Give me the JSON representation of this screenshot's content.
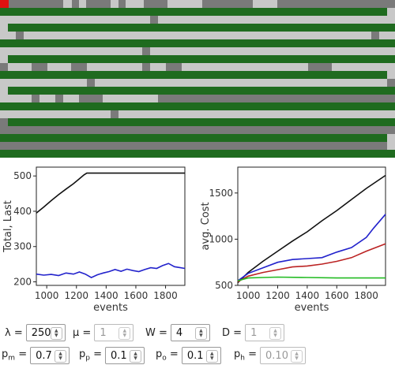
{
  "colors": {
    "empty": "#c8c8c8",
    "busy": "#7a7a7a",
    "filled": "#1f6b1f",
    "alert": "#e01010",
    "black_series": "#111111",
    "blue_series": "#2222cc",
    "red_series": "#bb2222",
    "green_series": "#22bb22"
  },
  "grid": {
    "rows": [
      [
        [
          0,
          11,
          "alert"
        ],
        [
          11,
          80,
          "busy"
        ],
        [
          80,
          91,
          "empty"
        ],
        [
          91,
          100,
          "busy"
        ],
        [
          100,
          109,
          "empty"
        ],
        [
          109,
          140,
          "busy"
        ],
        [
          140,
          150,
          "empty"
        ],
        [
          150,
          159,
          "busy"
        ],
        [
          159,
          182,
          "empty"
        ],
        [
          182,
          212,
          "busy"
        ],
        [
          212,
          256,
          "empty"
        ],
        [
          256,
          320,
          "busy"
        ],
        [
          320,
          351,
          "empty"
        ],
        [
          351,
          500,
          "busy"
        ]
      ],
      [
        [
          0,
          490,
          "filled"
        ],
        [
          490,
          500,
          "empty"
        ]
      ],
      [
        [
          0,
          190,
          "empty"
        ],
        [
          190,
          200,
          "busy"
        ],
        [
          200,
          500,
          "empty"
        ]
      ],
      [
        [
          0,
          10,
          "empty"
        ],
        [
          10,
          500,
          "filled"
        ]
      ],
      [
        [
          0,
          20,
          "empty"
        ],
        [
          20,
          30,
          "busy"
        ],
        [
          30,
          470,
          "empty"
        ],
        [
          470,
          480,
          "busy"
        ],
        [
          480,
          500,
          "empty"
        ]
      ],
      [
        [
          0,
          500,
          "filled"
        ]
      ],
      [
        [
          0,
          180,
          "empty"
        ],
        [
          180,
          190,
          "busy"
        ],
        [
          190,
          500,
          "empty"
        ]
      ],
      [
        [
          0,
          10,
          "empty"
        ],
        [
          10,
          500,
          "filled"
        ]
      ],
      [
        [
          0,
          10,
          "busy"
        ],
        [
          10,
          40,
          "empty"
        ],
        [
          40,
          60,
          "busy"
        ],
        [
          60,
          90,
          "empty"
        ],
        [
          90,
          110,
          "busy"
        ],
        [
          110,
          180,
          "empty"
        ],
        [
          180,
          190,
          "busy"
        ],
        [
          190,
          210,
          "empty"
        ],
        [
          210,
          230,
          "busy"
        ],
        [
          230,
          390,
          "empty"
        ],
        [
          390,
          420,
          "busy"
        ],
        [
          420,
          500,
          "empty"
        ]
      ],
      [
        [
          0,
          490,
          "filled"
        ],
        [
          490,
          500,
          "empty"
        ]
      ],
      [
        [
          0,
          110,
          "empty"
        ],
        [
          110,
          120,
          "busy"
        ],
        [
          120,
          490,
          "empty"
        ],
        [
          490,
          500,
          "busy"
        ]
      ],
      [
        [
          0,
          10,
          "empty"
        ],
        [
          10,
          500,
          "filled"
        ]
      ],
      [
        [
          0,
          40,
          "empty"
        ],
        [
          40,
          50,
          "busy"
        ],
        [
          50,
          70,
          "empty"
        ],
        [
          70,
          80,
          "busy"
        ],
        [
          80,
          100,
          "empty"
        ],
        [
          100,
          130,
          "busy"
        ],
        [
          130,
          200,
          "empty"
        ],
        [
          200,
          500,
          "busy"
        ]
      ],
      [
        [
          0,
          500,
          "filled"
        ]
      ],
      [
        [
          0,
          140,
          "empty"
        ],
        [
          140,
          150,
          "busy"
        ],
        [
          150,
          500,
          "empty"
        ]
      ],
      [
        [
          0,
          10,
          "busy"
        ],
        [
          10,
          500,
          "filled"
        ]
      ],
      [
        [
          0,
          500,
          "busy"
        ]
      ],
      [
        [
          0,
          490,
          "filled"
        ],
        [
          490,
          500,
          "empty"
        ]
      ],
      [
        [
          0,
          490,
          "busy"
        ],
        [
          490,
          500,
          "empty"
        ]
      ],
      [
        [
          0,
          500,
          "filled"
        ]
      ]
    ]
  },
  "chart_data": [
    {
      "type": "line",
      "xlabel": "events",
      "ylabel": "Total, Last",
      "xlim": [
        930,
        1930
      ],
      "ylim": [
        190,
        525
      ],
      "xticks": [
        1000,
        1200,
        1400,
        1600,
        1800
      ],
      "yticks": [
        200,
        300,
        400,
        500
      ],
      "series": [
        {
          "color": "black_series",
          "x": [
            930,
            980,
            1030,
            1080,
            1130,
            1180,
            1220,
            1250,
            1270,
            1300,
            1600,
            1930
          ],
          "y": [
            395,
            412,
            430,
            447,
            463,
            478,
            492,
            503,
            508,
            508,
            508,
            508
          ]
        },
        {
          "color": "blue_series",
          "x": [
            930,
            980,
            1030,
            1080,
            1130,
            1180,
            1220,
            1260,
            1300,
            1340,
            1380,
            1420,
            1460,
            1500,
            1540,
            1580,
            1620,
            1660,
            1700,
            1740,
            1780,
            1820,
            1860,
            1900,
            1930
          ],
          "y": [
            222,
            219,
            221,
            218,
            225,
            222,
            228,
            222,
            212,
            220,
            225,
            229,
            235,
            230,
            236,
            232,
            229,
            235,
            240,
            238,
            246,
            252,
            243,
            240,
            238
          ]
        }
      ]
    },
    {
      "type": "line",
      "xlabel": "events",
      "ylabel": "avg. Cost",
      "xlim": [
        930,
        1930
      ],
      "ylim": [
        500,
        1780
      ],
      "xticks": [
        1000,
        1200,
        1400,
        1600,
        1800
      ],
      "yticks": [
        500,
        1000,
        1500
      ],
      "series": [
        {
          "color": "black_series",
          "x": [
            930,
            1000,
            1100,
            1200,
            1300,
            1400,
            1500,
            1600,
            1700,
            1800,
            1930
          ],
          "y": [
            530,
            640,
            760,
            870,
            980,
            1080,
            1200,
            1310,
            1430,
            1550,
            1690
          ]
        },
        {
          "color": "blue_series",
          "x": [
            930,
            1000,
            1100,
            1200,
            1300,
            1400,
            1500,
            1600,
            1700,
            1800,
            1850,
            1930
          ],
          "y": [
            550,
            630,
            690,
            750,
            780,
            790,
            800,
            860,
            910,
            1020,
            1120,
            1270
          ]
        },
        {
          "color": "red_series",
          "x": [
            930,
            1000,
            1100,
            1200,
            1300,
            1400,
            1500,
            1600,
            1700,
            1800,
            1930
          ],
          "y": [
            540,
            600,
            640,
            670,
            700,
            710,
            730,
            760,
            800,
            870,
            950
          ]
        },
        {
          "color": "green_series",
          "x": [
            930,
            1000,
            1100,
            1200,
            1400,
            1600,
            1800,
            1930
          ],
          "y": [
            550,
            580,
            585,
            590,
            585,
            580,
            580,
            580
          ]
        }
      ]
    }
  ],
  "controls": {
    "lambda": {
      "symbol": "λ",
      "eq": "=",
      "value": "250",
      "enabled": true
    },
    "mu": {
      "symbol": "μ",
      "eq": "=",
      "value": "1",
      "enabled": false
    },
    "W": {
      "symbol": "W",
      "eq": "=",
      "value": "4",
      "enabled": true
    },
    "D": {
      "symbol": "D",
      "eq": "=",
      "value": "1",
      "enabled": false
    },
    "pm": {
      "base": "p",
      "sub": "m",
      "eq": "=",
      "value": "0.7",
      "enabled": true
    },
    "pp": {
      "base": "p",
      "sub": "p",
      "eq": "=",
      "value": "0.1",
      "enabled": true
    },
    "po": {
      "base": "p",
      "sub": "o",
      "eq": "=",
      "value": "0.1",
      "enabled": true
    },
    "ph": {
      "base": "p",
      "sub": "h",
      "eq": "=",
      "value": "0.10",
      "enabled": false
    }
  }
}
